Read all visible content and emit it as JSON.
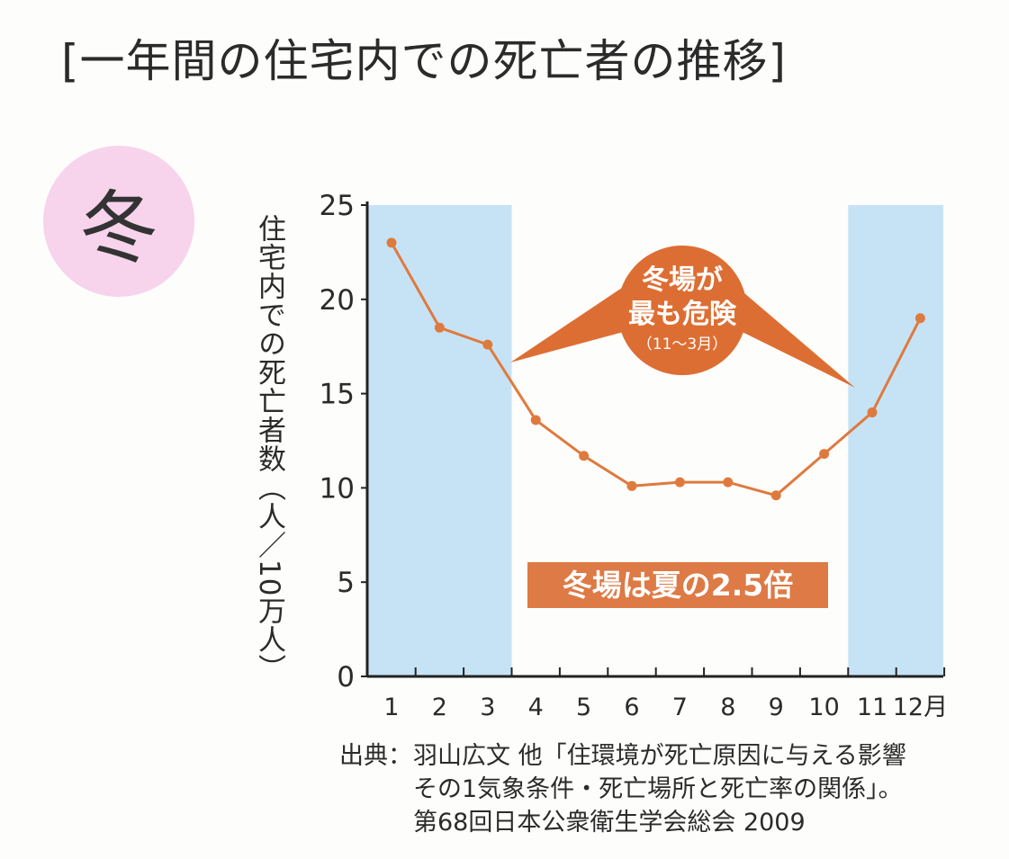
{
  "title": "[一年間の住宅内での死亡者の推移]",
  "season_badge": "冬",
  "colors": {
    "line": "#df7a3e",
    "winter_shade": "#c6e3f6",
    "bubble": "#dd6e33",
    "banner": "#dd7a45",
    "badge": "#f7d3ec"
  },
  "chart_data": {
    "type": "line",
    "x": [
      "1",
      "2",
      "3",
      "4",
      "5",
      "6",
      "7",
      "8",
      "9",
      "10",
      "11",
      "12"
    ],
    "x_unit": "月",
    "ylabel": "住宅内での死亡者数（人／10万人）",
    "ylim": [
      0,
      25
    ],
    "yticks": [
      0,
      5,
      10,
      15,
      20,
      25
    ],
    "series": [
      {
        "values": [
          23.0,
          18.5,
          17.6,
          13.6,
          11.7,
          10.1,
          10.3,
          10.3,
          9.6,
          11.8,
          14.0,
          19.0
        ]
      }
    ],
    "shaded_ranges": [
      [
        1,
        3
      ],
      [
        11,
        12
      ]
    ],
    "annotations": {
      "bubble": {
        "line1": "冬場が",
        "line2": "最も危険",
        "line3": "（11～3月）"
      },
      "banner": "冬場は夏の2.5倍"
    }
  },
  "source": {
    "label": "出典：",
    "line1": "羽山広文 他「住環境が死亡原因に与える影響",
    "line2": "その1気象条件・死亡場所と死亡率の関係」。",
    "line3": "第68回日本公衆衛生学会総会 2009"
  }
}
